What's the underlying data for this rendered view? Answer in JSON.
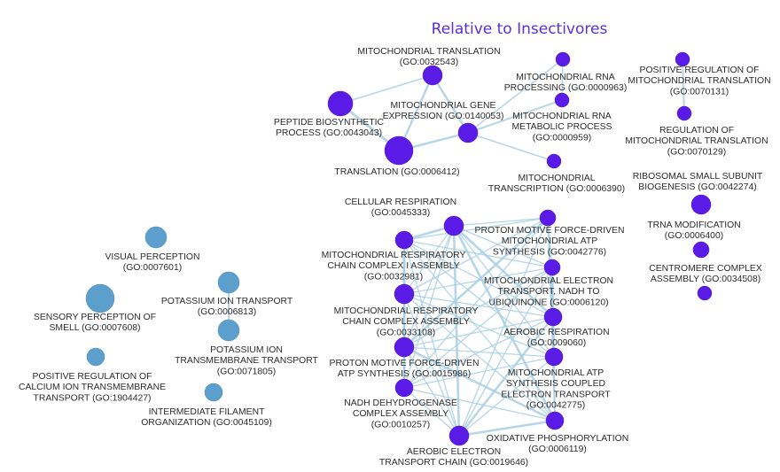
{
  "title": "Relative to Insectivores",
  "colors": {
    "purple_nodes": "#5a1be6",
    "blue_nodes": "#5c9fcc",
    "edges": "#a9cfe3"
  },
  "nodes": {
    "mito_translation": {
      "lines": [
        "MITOCHONDRIAL TRANSLATION",
        "(GO:0032543)"
      ]
    },
    "mito_rna_processing": {
      "lines": [
        "MITOCHONDRIAL RNA",
        "PROCESSING (GO:0000963)"
      ]
    },
    "pos_reg_mito_translation": {
      "lines": [
        "POSITIVE REGULATION OF",
        "MITOCHONDRIAL TRANSLATION",
        "(GO:0070131)"
      ]
    },
    "mito_gene_expression": {
      "lines": [
        "MITOCHONDRIAL GENE",
        "EXPRESSION (GO:0140053)"
      ]
    },
    "mito_rna_metabolic": {
      "lines": [
        "MITOCHONDRIAL RNA",
        "METABOLIC PROCESS",
        "(GO:0000959)"
      ]
    },
    "peptide_biosynthetic": {
      "lines": [
        "PEPTIDE BIOSYNTHETIC",
        "PROCESS (GO:0043043)"
      ]
    },
    "reg_mito_translation": {
      "lines": [
        "REGULATION OF",
        "MITOCHONDRIAL TRANSLATION",
        "(GO:0070129)"
      ]
    },
    "translation": {
      "lines": [
        "TRANSLATION (GO:0006412)"
      ]
    },
    "mito_transcription": {
      "lines": [
        "MITOCHONDRIAL",
        "TRANSCRIPTION (GO:0006390)"
      ]
    },
    "ribosomal_small_subunit": {
      "lines": [
        "RIBOSOMAL SMALL SUBUNIT",
        "BIOGENESIS (GO:0042274)"
      ]
    },
    "cellular_respiration": {
      "lines": [
        "CELLULAR RESPIRATION",
        "(GO:0045333)"
      ]
    },
    "trna_modification": {
      "lines": [
        "TRNA MODIFICATION",
        "(GO:0006400)"
      ]
    },
    "pmf_mito_atp": {
      "lines": [
        "PROTON MOTIVE FORCE-DRIVEN",
        "MITOCHONDRIAL ATP",
        "SYNTHESIS (GO:0042776)"
      ]
    },
    "visual_perception": {
      "lines": [
        "VISUAL PERCEPTION",
        "(GO:0007601)"
      ]
    },
    "mito_resp_chain_i": {
      "lines": [
        "MITOCHONDRIAL RESPIRATORY",
        "CHAIN COMPLEX I ASSEMBLY",
        "(GO:0032981)"
      ]
    },
    "centromere_complex": {
      "lines": [
        "CENTROMERE COMPLEX",
        "ASSEMBLY (GO:0034508)"
      ]
    },
    "potassium_ion_transport": {
      "lines": [
        "POTASSIUM ION TRANSPORT",
        "(GO:0006813)"
      ]
    },
    "mito_electron_nadh": {
      "lines": [
        "MITOCHONDRIAL ELECTRON",
        "TRANSPORT, NADH TO",
        "UBIQUINONE (GO:0006120)"
      ]
    },
    "sensory_smell": {
      "lines": [
        "SENSORY PERCEPTION OF",
        "SMELL (GO:0007608)"
      ]
    },
    "mito_resp_chain_assembly": {
      "lines": [
        "MITOCHONDRIAL RESPIRATORY",
        "CHAIN COMPLEX ASSEMBLY",
        "(GO:0033108)"
      ]
    },
    "potassium_transmembrane": {
      "lines": [
        "POTASSIUM ION",
        "TRANSMEMBRANE TRANSPORT",
        "(GO:0071805)"
      ]
    },
    "aerobic_respiration": {
      "lines": [
        "AEROBIC RESPIRATION",
        "(GO:0009060)"
      ]
    },
    "pos_reg_calcium": {
      "lines": [
        "POSITIVE REGULATION OF",
        "CALCIUM ION TRANSMEMBRANE",
        "TRANSPORT (GO:1904427)"
      ]
    },
    "pmf_atp_synthesis": {
      "lines": [
        "PROTON MOTIVE FORCE-DRIVEN",
        "ATP SYNTHESIS (GO:0015986)"
      ]
    },
    "mito_atp_coupled": {
      "lines": [
        "MITOCHONDRIAL ATP",
        "SYNTHESIS COUPLED",
        "ELECTRON TRANSPORT",
        "(GO:0042775)"
      ]
    },
    "nadh_dehydrogenase": {
      "lines": [
        "NADH DEHYDROGENASE",
        "COMPLEX ASSEMBLY",
        "(GO:0010257)"
      ]
    },
    "intermediate_filament": {
      "lines": [
        "INTERMEDIATE FILAMENT",
        "ORGANIZATION (GO:0045109)"
      ]
    },
    "oxidative_phosphorylation": {
      "lines": [
        "OXIDATIVE PHOSPHORYLATION",
        "(GO:0006119)"
      ]
    },
    "aerobic_electron_transport": {
      "lines": [
        "AEROBIC ELECTRON",
        "TRANSPORT CHAIN (GO:0019646)"
      ]
    }
  }
}
